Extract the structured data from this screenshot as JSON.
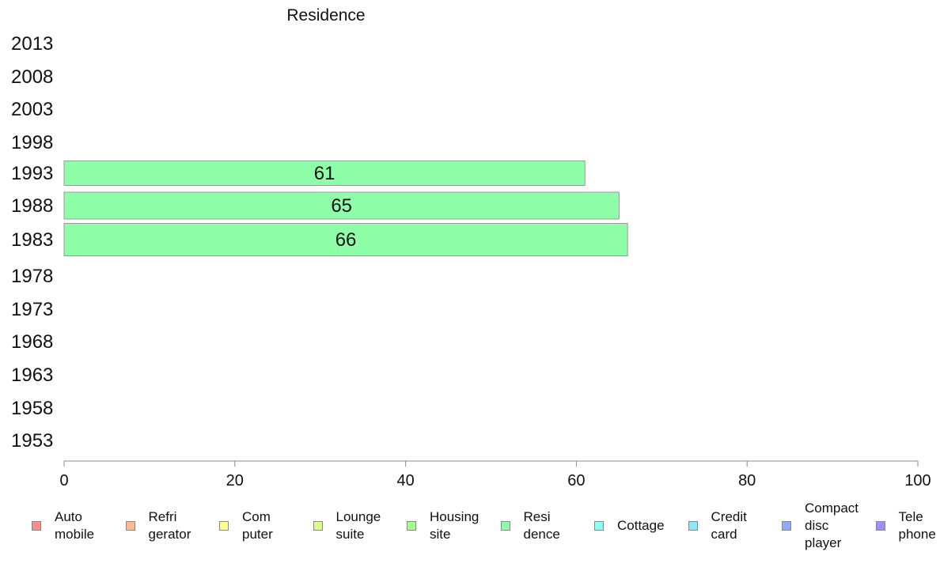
{
  "chart_data": {
    "type": "bar",
    "orientation": "horizontal",
    "title": "Residence",
    "categories": [
      "2013",
      "2008",
      "2003",
      "1998",
      "1993",
      "1988",
      "1983",
      "1978",
      "1973",
      "1968",
      "1963",
      "1958",
      "1953"
    ],
    "series": [
      {
        "name": "Resi\ndence",
        "values": [
          null,
          null,
          null,
          null,
          61,
          65,
          66,
          null,
          null,
          null,
          null,
          null,
          null
        ],
        "color": "#8effa8"
      }
    ],
    "data_labels": [
      "",
      "",
      "",
      "",
      "61",
      "65",
      "66",
      "",
      "",
      "",
      "",
      "",
      ""
    ],
    "xlim": [
      0,
      100
    ],
    "xticks": [
      "0",
      "20",
      "40",
      "60",
      "80",
      "100"
    ],
    "grid": false,
    "legend": {
      "placement": "bottom",
      "items": [
        {
          "label": "Auto\nmobile",
          "color": "#ff8c8c"
        },
        {
          "label": "Refri\ngerator",
          "color": "#ffb98c"
        },
        {
          "label": "Com\nputer",
          "color": "#ffff8c"
        },
        {
          "label": "Lounge\nsuite",
          "color": "#d8ff8c"
        },
        {
          "label": "Housing\nsite",
          "color": "#a3ff8c"
        },
        {
          "label": "Resi\ndence",
          "color": "#8effa8"
        },
        {
          "label": "Cottage",
          "color": "#8effef"
        },
        {
          "label": "Credit\ncard",
          "color": "#8ce6ff"
        },
        {
          "label": "Compact\ndisc\nplayer",
          "color": "#8caaff"
        },
        {
          "label": "Tele\nphone",
          "color": "#a08cff"
        }
      ]
    }
  }
}
